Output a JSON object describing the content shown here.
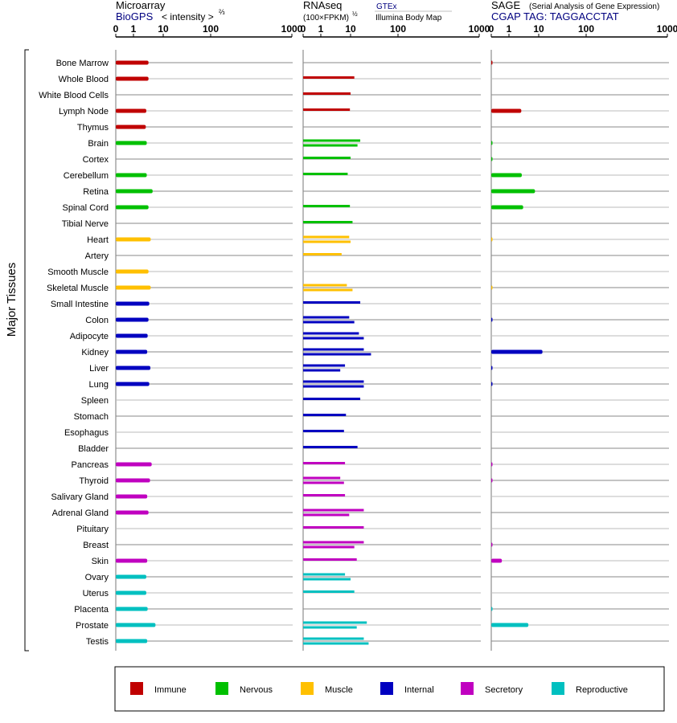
{
  "chart_data": {
    "type": "bar",
    "ylabel": "Major Tissues",
    "tissues": [
      {
        "name": "Bone Marrow",
        "group": "immune"
      },
      {
        "name": "Whole Blood",
        "group": "immune"
      },
      {
        "name": "White Blood Cells",
        "group": "immune"
      },
      {
        "name": "Lymph Node",
        "group": "immune"
      },
      {
        "name": "Thymus",
        "group": "immune"
      },
      {
        "name": "Brain",
        "group": "nervous"
      },
      {
        "name": "Cortex",
        "group": "nervous"
      },
      {
        "name": "Cerebellum",
        "group": "nervous"
      },
      {
        "name": "Retina",
        "group": "nervous"
      },
      {
        "name": "Spinal Cord",
        "group": "nervous"
      },
      {
        "name": "Tibial Nerve",
        "group": "nervous"
      },
      {
        "name": "Heart",
        "group": "muscle"
      },
      {
        "name": "Artery",
        "group": "muscle"
      },
      {
        "name": "Smooth Muscle",
        "group": "muscle"
      },
      {
        "name": "Skeletal Muscle",
        "group": "muscle"
      },
      {
        "name": "Small Intestine",
        "group": "internal"
      },
      {
        "name": "Colon",
        "group": "internal"
      },
      {
        "name": "Adipocyte",
        "group": "internal"
      },
      {
        "name": "Kidney",
        "group": "internal"
      },
      {
        "name": "Liver",
        "group": "internal"
      },
      {
        "name": "Lung",
        "group": "internal"
      },
      {
        "name": "Spleen",
        "group": "internal"
      },
      {
        "name": "Stomach",
        "group": "internal"
      },
      {
        "name": "Esophagus",
        "group": "internal"
      },
      {
        "name": "Bladder",
        "group": "internal"
      },
      {
        "name": "Pancreas",
        "group": "secretory"
      },
      {
        "name": "Thyroid",
        "group": "secretory"
      },
      {
        "name": "Salivary Gland",
        "group": "secretory"
      },
      {
        "name": "Adrenal Gland",
        "group": "secretory"
      },
      {
        "name": "Pituitary",
        "group": "secretory"
      },
      {
        "name": "Breast",
        "group": "secretory"
      },
      {
        "name": "Skin",
        "group": "secretory"
      },
      {
        "name": "Ovary",
        "group": "reproductive"
      },
      {
        "name": "Uterus",
        "group": "reproductive"
      },
      {
        "name": "Placenta",
        "group": "reproductive"
      },
      {
        "name": "Prostate",
        "group": "reproductive"
      },
      {
        "name": "Testis",
        "group": "reproductive"
      }
    ],
    "groups": [
      {
        "key": "immune",
        "label": "Immune",
        "color": "#c00000"
      },
      {
        "key": "nervous",
        "label": "Nervous",
        "color": "#00c000"
      },
      {
        "key": "muscle",
        "label": "Muscle",
        "color": "#ffc000"
      },
      {
        "key": "internal",
        "label": "Internal",
        "color": "#0000c0"
      },
      {
        "key": "secretory",
        "label": "Secretory",
        "color": "#c000c0"
      },
      {
        "key": "reproductive",
        "label": "Reproductive",
        "color": "#00c0c0"
      }
    ],
    "panels": [
      {
        "id": "microarray",
        "title": "Microarray",
        "subtitle": "BioGPS",
        "scale_note": "< intensity >",
        "scale_exp": "⅔",
        "ticks": [
          0,
          1,
          10,
          100,
          1000
        ],
        "xlim": [
          0,
          1000
        ],
        "values": [
          3.2,
          3.2,
          null,
          2.7,
          2.6,
          2.8,
          null,
          2.8,
          4.4,
          3.2,
          null,
          3.8,
          null,
          3.2,
          3.8,
          3.4,
          3.2,
          3.0,
          2.9,
          3.7,
          3.4,
          null,
          null,
          null,
          null,
          4.1,
          3.6,
          2.9,
          3.2,
          null,
          null,
          2.9,
          2.7,
          2.7,
          3.0,
          5.5,
          2.9
        ],
        "values2": []
      },
      {
        "id": "rnaseq",
        "title": "RNAseq",
        "subtitle": "(100×FPKM)",
        "subtitle_exp": "½",
        "source_top": "GTEx",
        "source_bottom": "Illumina Body Map",
        "ticks": [
          0,
          1,
          10,
          100,
          1000
        ],
        "xlim": [
          0,
          1000
        ],
        "values": [
          null,
          12,
          10,
          9.5,
          null,
          16,
          10,
          8,
          null,
          9.5,
          11,
          9,
          5,
          null,
          7.5,
          16,
          9,
          15,
          19,
          6.5,
          19,
          16,
          7,
          6,
          14,
          6.5,
          4.5,
          6.5,
          19,
          19,
          19,
          13.5,
          6.5,
          12,
          null,
          22,
          19
        ],
        "values2": [
          null,
          null,
          null,
          null,
          null,
          14,
          null,
          null,
          null,
          null,
          null,
          10,
          null,
          null,
          11,
          null,
          12,
          19,
          27,
          4.5,
          19,
          null,
          null,
          null,
          null,
          null,
          6,
          null,
          9,
          null,
          12,
          null,
          10,
          null,
          null,
          13.5,
          24
        ]
      },
      {
        "id": "sage",
        "title": "SAGE",
        "title_note": "(Serial Analysis of Gene Expression)",
        "subtitle": "CGAP TAG: TAGGACCTAT",
        "ticks": [
          0,
          1,
          10,
          100,
          1000
        ],
        "xlim": [
          0,
          1000
        ],
        "values": [
          0.05,
          null,
          null,
          2.6,
          null,
          0.05,
          0.05,
          2.7,
          7.5,
          3.0,
          null,
          0.02,
          null,
          null,
          0.02,
          null,
          0.05,
          null,
          12,
          0.05,
          0.05,
          null,
          null,
          null,
          null,
          0.05,
          0.05,
          null,
          null,
          null,
          0.05,
          0.6,
          null,
          null,
          0.05,
          4.5,
          null
        ],
        "values2": []
      }
    ]
  }
}
